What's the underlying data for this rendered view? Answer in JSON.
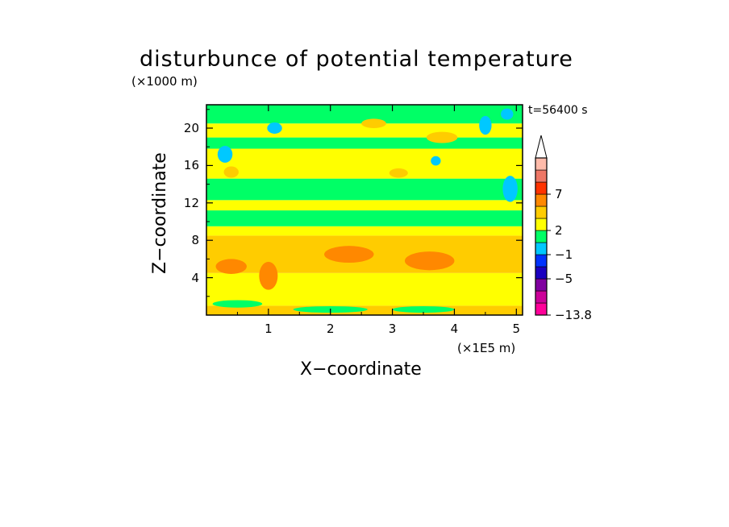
{
  "chart_data": {
    "type": "heatmap",
    "title": "disturbunce of potential temperature",
    "xlabel": "X−coordinate",
    "ylabel": "Z−coordinate",
    "x_unit": "(×1E5 m)",
    "z_unit": "(×1000 m)",
    "annotation": "t=56400 s",
    "xlim": [
      0,
      5.1
    ],
    "ylim": [
      0,
      22.5
    ],
    "x_ticks": [
      1,
      2,
      3,
      4,
      5
    ],
    "y_ticks": [
      4,
      8,
      12,
      16,
      20
    ],
    "x_tick_labels": [
      "1",
      "2",
      "3",
      "4",
      "5"
    ],
    "y_tick_labels": [
      "4",
      "8",
      "12",
      "16",
      "20"
    ],
    "colorbar": {
      "min_label": "−13.8",
      "labels": [
        {
          "value": "7",
          "level": 10
        },
        {
          "value": "2",
          "level": 7
        },
        {
          "value": "−1",
          "level": 5
        },
        {
          "value": "−5",
          "level": 3
        },
        {
          "value": "−13.8",
          "level": 0
        }
      ],
      "colors": [
        "#ff0099",
        "#cc0099",
        "#8000a0",
        "#1a00c0",
        "#0033ff",
        "#00c8ff",
        "#00ff66",
        "#ffff00",
        "#ffcc00",
        "#ff8800",
        "#ff3300",
        "#ee7766",
        "#ffbbaa"
      ]
    },
    "bands": [
      {
        "z0": 0,
        "z1": 1.0,
        "level": 8
      },
      {
        "z0": 1.0,
        "z1": 4.5,
        "level": 7
      },
      {
        "z0": 4.5,
        "z1": 8.5,
        "level": 8
      },
      {
        "z0": 8.5,
        "z1": 9.5,
        "level": 7
      },
      {
        "z0": 9.5,
        "z1": 11.2,
        "level": 6
      },
      {
        "z0": 11.2,
        "z1": 12.3,
        "level": 7
      },
      {
        "z0": 12.3,
        "z1": 14.6,
        "level": 6
      },
      {
        "z0": 14.6,
        "z1": 17.8,
        "level": 7
      },
      {
        "z0": 17.8,
        "z1": 19.0,
        "level": 6
      },
      {
        "z0": 19.0,
        "z1": 20.5,
        "level": 7
      },
      {
        "z0": 20.5,
        "z1": 22.5,
        "level": 6
      }
    ],
    "blobs": [
      {
        "x": 0.4,
        "z": 5.2,
        "rx": 0.25,
        "rz": 0.8,
        "level": 9
      },
      {
        "x": 1.0,
        "z": 4.2,
        "rx": 0.15,
        "rz": 1.5,
        "level": 9
      },
      {
        "x": 2.3,
        "z": 6.5,
        "rx": 0.4,
        "rz": 0.9,
        "level": 9
      },
      {
        "x": 3.6,
        "z": 5.8,
        "rx": 0.4,
        "rz": 1.0,
        "level": 9
      },
      {
        "x": 0.3,
        "z": 17.2,
        "rx": 0.06,
        "rz": 0.5,
        "level": 4
      },
      {
        "x": 0.3,
        "z": 17.2,
        "rx": 0.12,
        "rz": 0.9,
        "level": 5
      },
      {
        "x": 1.1,
        "z": 20.0,
        "rx": 0.12,
        "rz": 0.6,
        "level": 5
      },
      {
        "x": 3.7,
        "z": 16.5,
        "rx": 0.08,
        "rz": 0.5,
        "level": 5
      },
      {
        "x": 4.5,
        "z": 20.3,
        "rx": 0.1,
        "rz": 1.0,
        "level": 5
      },
      {
        "x": 4.95,
        "z": 13.5,
        "rx": 0.05,
        "rz": 0.7,
        "level": 4
      },
      {
        "x": 4.9,
        "z": 13.5,
        "rx": 0.12,
        "rz": 1.4,
        "level": 5
      },
      {
        "x": 4.85,
        "z": 21.5,
        "rx": 0.1,
        "rz": 0.6,
        "level": 5
      },
      {
        "x": 0.4,
        "z": 15.3,
        "rx": 0.12,
        "rz": 0.6,
        "level": 8
      },
      {
        "x": 2.7,
        "z": 20.5,
        "rx": 0.2,
        "rz": 0.5,
        "level": 8
      },
      {
        "x": 3.1,
        "z": 15.2,
        "rx": 0.15,
        "rz": 0.5,
        "level": 8
      },
      {
        "x": 3.8,
        "z": 19.0,
        "rx": 0.25,
        "rz": 0.6,
        "level": 8
      },
      {
        "x": 0.5,
        "z": 1.2,
        "rx": 0.4,
        "rz": 0.4,
        "level": 6
      },
      {
        "x": 2.0,
        "z": 0.6,
        "rx": 0.6,
        "rz": 0.35,
        "level": 6
      },
      {
        "x": 3.5,
        "z": 0.6,
        "rx": 0.5,
        "rz": 0.35,
        "level": 6
      }
    ]
  }
}
